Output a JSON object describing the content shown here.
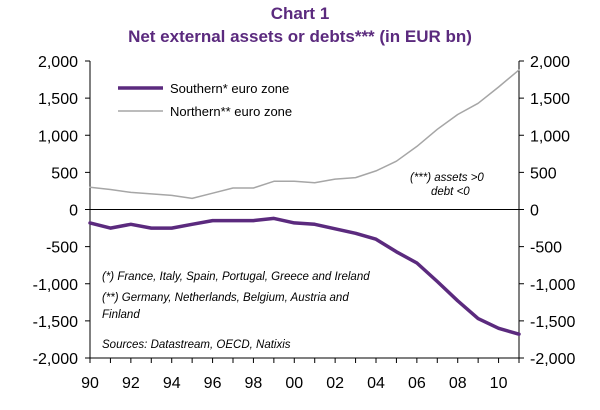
{
  "chart_data": {
    "type": "line",
    "title": "Chart 1",
    "subtitle": "Net external assets or debts*** (in EUR bn)",
    "xlabel": "",
    "ylabel": "",
    "x": [
      1990,
      1991,
      1992,
      1993,
      1994,
      1995,
      1996,
      1997,
      1998,
      1999,
      2000,
      2001,
      2002,
      2003,
      2004,
      2005,
      2006,
      2007,
      2008,
      2009,
      2010,
      2011
    ],
    "x_tick_labels": [
      "90",
      "92",
      "94",
      "96",
      "98",
      "00",
      "02",
      "04",
      "06",
      "08",
      "10"
    ],
    "x_tick_values": [
      1990,
      1992,
      1994,
      1996,
      1998,
      2000,
      2002,
      2004,
      2006,
      2008,
      2010
    ],
    "xlim": [
      1990,
      2011
    ],
    "ylim": [
      -2000,
      2000
    ],
    "y_ticks": [
      2000,
      1500,
      1000,
      500,
      0,
      -500,
      -1000,
      -1500,
      -2000
    ],
    "y_tick_labels_left": [
      "2,000",
      "1,500",
      "1,000",
      "500",
      "0",
      "-500",
      "-1,000",
      "-1,500",
      "-2,000"
    ],
    "y_tick_labels_right": [
      "2,000",
      "1,500",
      "1,000",
      "500",
      "0",
      "-500",
      "-1,000",
      "-1,500",
      "-2,000"
    ],
    "grid": false,
    "legend_position": "top-left",
    "series": [
      {
        "name": "Southern* euro zone",
        "color": "#5b2a7e",
        "values": [
          -180,
          -250,
          -200,
          -250,
          -250,
          -200,
          -150,
          -150,
          -150,
          -120,
          -180,
          -200,
          -260,
          -320,
          -400,
          -570,
          -720,
          -970,
          -1230,
          -1470,
          -1600,
          -1680
        ]
      },
      {
        "name": "Northern** euro zone",
        "color": "#a6a6a6",
        "values": [
          300,
          270,
          230,
          210,
          190,
          150,
          220,
          290,
          290,
          380,
          380,
          360,
          410,
          430,
          520,
          650,
          850,
          1080,
          1280,
          1430,
          1650,
          1880
        ]
      }
    ],
    "annotations": [
      "(***) assets >0",
      "debt <0",
      "(*) France, Italy, Spain, Portugal, Greece and Ireland",
      "(**) Germany, Netherlands, Belgium, Austria and",
      "Finland",
      "Sources: Datastream, OECD, Natixis"
    ]
  }
}
